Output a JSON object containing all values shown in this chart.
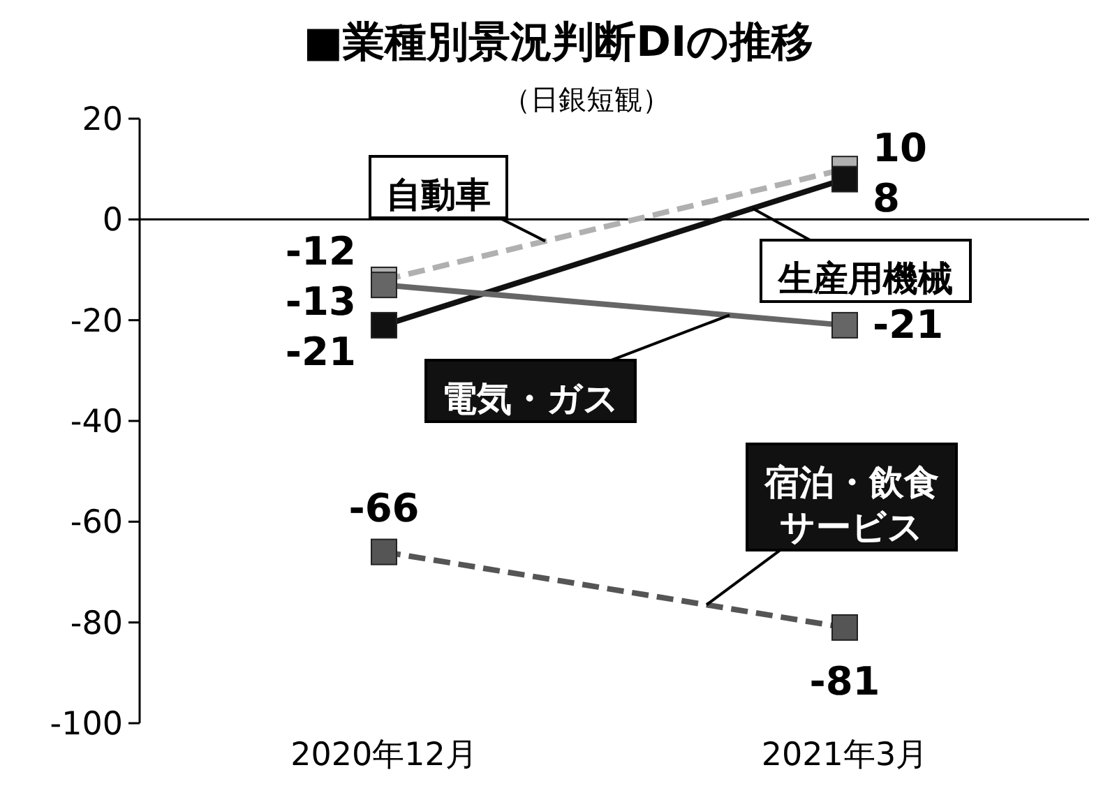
{
  "chart_data": {
    "type": "line",
    "title": "■業種別景況判断DIの推移",
    "subtitle": "（日銀短観）",
    "categories": [
      "2020年12月",
      "2021年3月"
    ],
    "ylim": [
      -100,
      20
    ],
    "yticks": [
      -100,
      -80,
      -60,
      -40,
      -20,
      0,
      20
    ],
    "ref_lines": [
      {
        "axis": "y",
        "value": 0,
        "color": "#000000"
      }
    ],
    "data_labels": true,
    "legend": false,
    "grid": false,
    "marker": "square",
    "series": [
      {
        "name": "自動車",
        "color": "#b0b0b0",
        "line_style": "dashed",
        "values": [
          -12,
          10
        ]
      },
      {
        "name": "生産用機械",
        "color": "#111111",
        "line_style": "solid",
        "values": [
          -21,
          8
        ]
      },
      {
        "name": "電気・ガス",
        "color": "#666666",
        "line_style": "solid",
        "values": [
          -13,
          -21
        ]
      },
      {
        "name": "宿泊・飲食サービス",
        "color": "#555555",
        "line_style": "dashed",
        "values": [
          -66,
          -81
        ]
      }
    ]
  }
}
